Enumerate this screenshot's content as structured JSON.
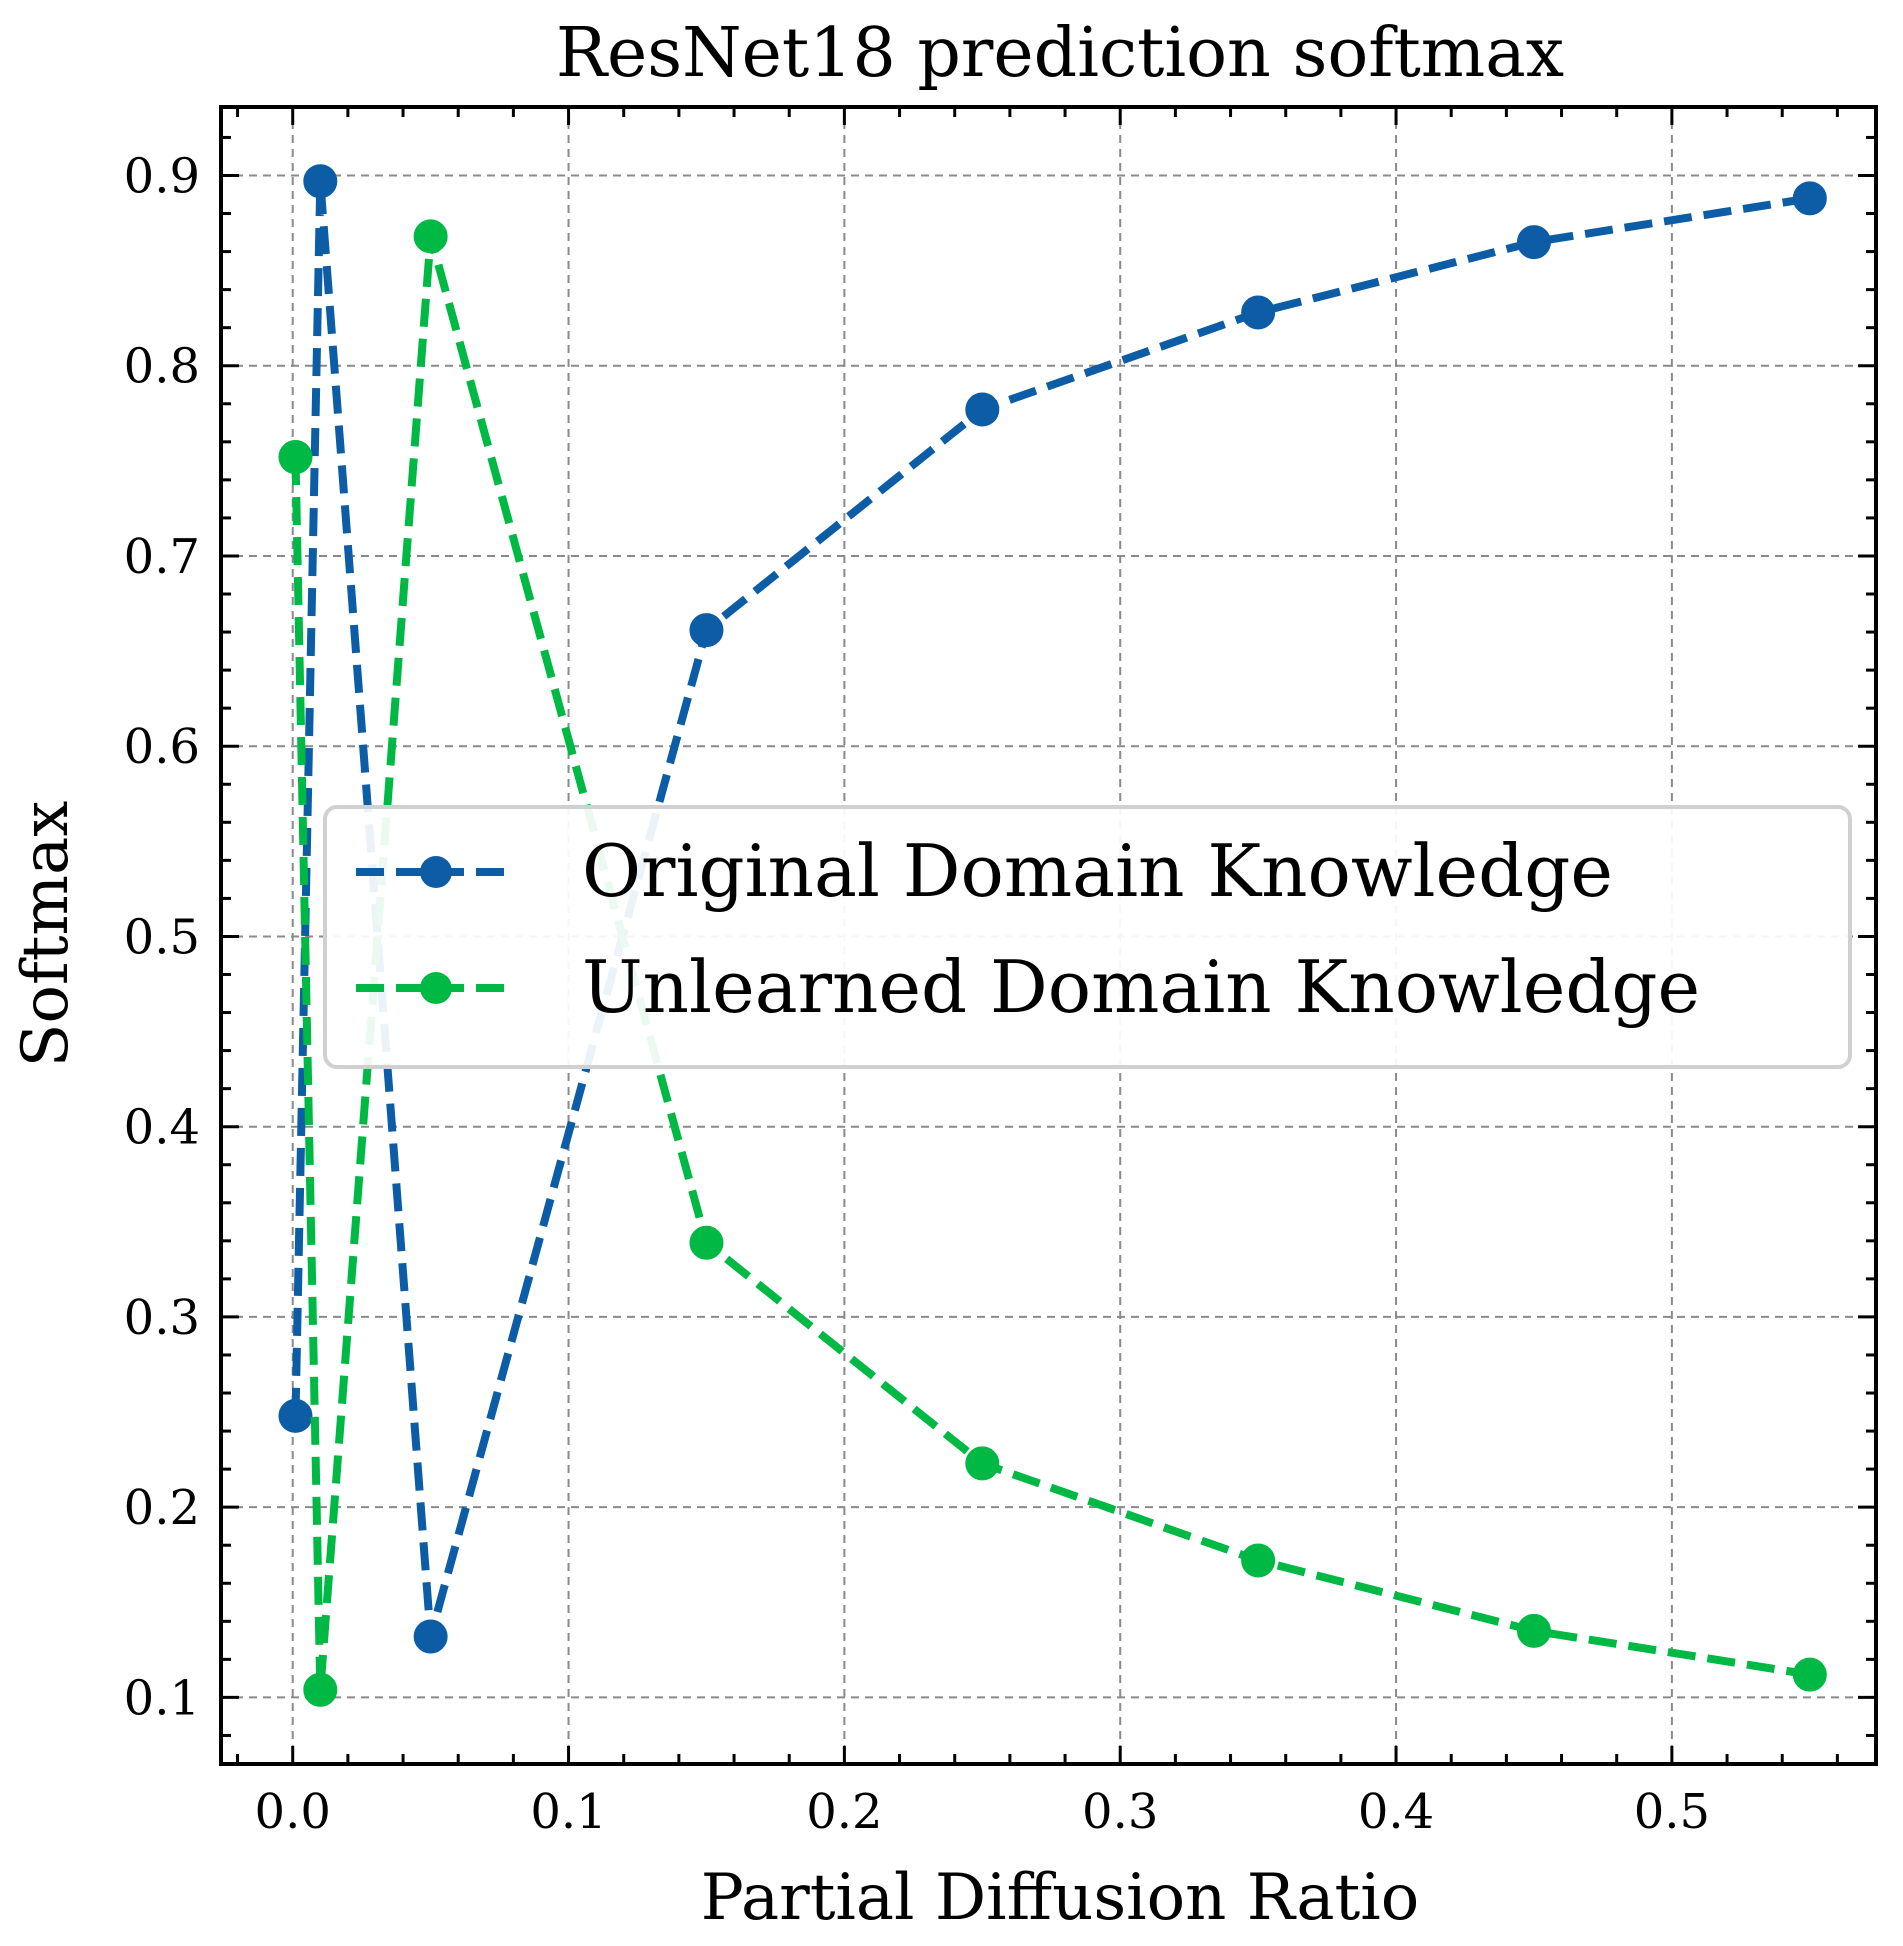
{
  "chart_data": {
    "type": "line",
    "title": "ResNet18 prediction softmax",
    "xlabel": "Partial Diffusion Ratio",
    "ylabel": "Softmax",
    "xlim": [
      -0.026,
      0.574
    ],
    "ylim": [
      0.065,
      0.936
    ],
    "xticks": [
      0.0,
      0.1,
      0.2,
      0.3,
      0.4,
      0.5
    ],
    "xtick_labels": [
      "0.0",
      "0.1",
      "0.2",
      "0.3",
      "0.4",
      "0.5"
    ],
    "yticks": [
      0.1,
      0.2,
      0.3,
      0.4,
      0.5,
      0.6,
      0.7,
      0.8,
      0.9
    ],
    "ytick_labels": [
      "0.1",
      "0.2",
      "0.3",
      "0.4",
      "0.5",
      "0.6",
      "0.7",
      "0.8",
      "0.9"
    ],
    "grid": true,
    "legend_position": "center-right",
    "x": [
      0.001,
      0.01,
      0.05,
      0.15,
      0.25,
      0.35,
      0.45,
      0.55
    ],
    "series": [
      {
        "name": "Original Domain Knowledge",
        "color": "#0C5DA5",
        "values": [
          0.248,
          0.897,
          0.132,
          0.661,
          0.777,
          0.828,
          0.865,
          0.888
        ]
      },
      {
        "name": "Unlearned Domain Knowledge",
        "color": "#00B945",
        "values": [
          0.752,
          0.104,
          0.868,
          0.339,
          0.223,
          0.172,
          0.135,
          0.112
        ]
      }
    ]
  }
}
